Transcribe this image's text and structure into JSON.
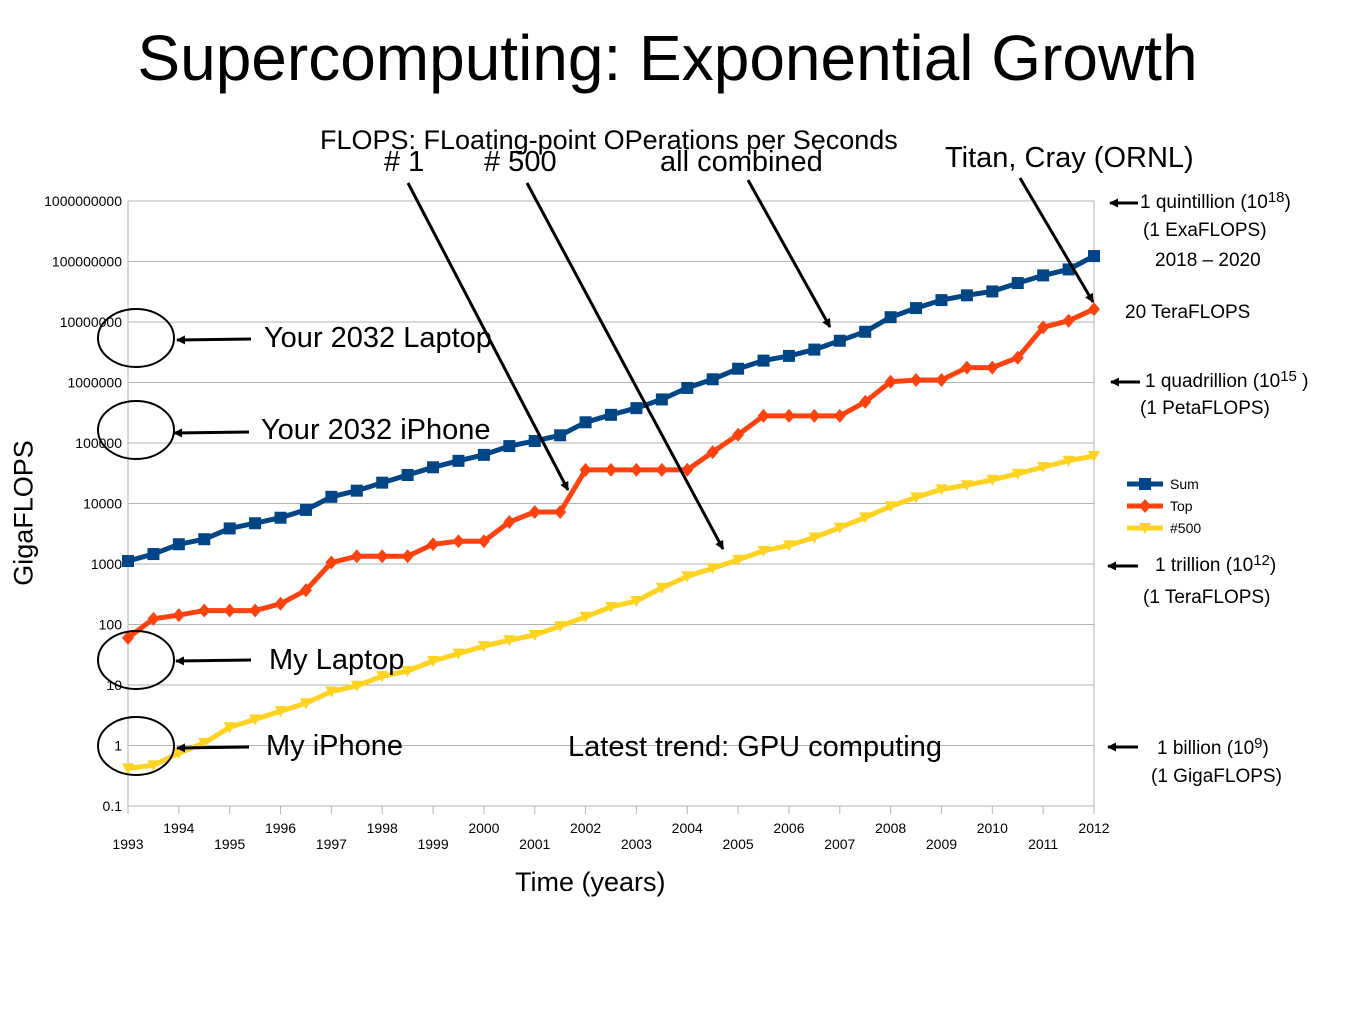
{
  "title": "Supercomputing: Exponential Growth",
  "subtitle": "FLOPS: FLoating-point OPerations per Seconds",
  "annotations": {
    "num1": "# 1",
    "num500": "# 500",
    "combined": "all combined",
    "titan": "Titan, Cray (ORNL)",
    "your_laptop": "Your 2032 Laptop",
    "your_iphone": "Your 2032 iPhone",
    "my_laptop": "My Laptop",
    "my_iphone": "My iPhone",
    "gpu_trend": "Latest trend: GPU computing"
  },
  "right_labels": {
    "quintillion": "1 quintillion (10",
    "quintillion_exp": "18",
    "exa": "(1 ExaFLOPS)",
    "exa_years": "2018 – 2020",
    "titan_value": "20 TeraFLOPS",
    "quadrillion": "1 quadrillion (10",
    "quadrillion_exp": "15",
    "peta": "(1 PetaFLOPS)",
    "trillion": "1 trillion (10",
    "trillion_exp": "12",
    "tera": "(1 TeraFLOPS)",
    "billion": "1 billion (10",
    "billion_exp": "9",
    "giga": "(1 GigaFLOPS)"
  },
  "chart_data": {
    "type": "line",
    "title": "",
    "xlabel": "Time (years)",
    "ylabel": "GigaFLOPS",
    "y_scale": "log",
    "ylim": [
      0.1,
      1000000000
    ],
    "y_ticks": [
      "0.1",
      "1",
      "10",
      "100",
      "1000",
      "10000",
      "100000",
      "1000000",
      "10000000",
      "100000000",
      "1000000000"
    ],
    "x_ticks_low": [
      "1993",
      "1995",
      "1997",
      "1999",
      "2001",
      "2003",
      "2005",
      "2007",
      "2009",
      "2011"
    ],
    "x_ticks_high": [
      "1994",
      "1996",
      "1998",
      "2000",
      "2002",
      "2004",
      "2006",
      "2008",
      "2010",
      "2012"
    ],
    "xlim": [
      1993,
      2012
    ],
    "grid": true,
    "legend_position": "right",
    "colors": {
      "sum": "#004586",
      "top": "#ff420e",
      "n500": "#ffd320"
    },
    "x": [
      1993.0,
      1993.5,
      1994.0,
      1994.5,
      1995.0,
      1995.5,
      1996.0,
      1996.5,
      1997.0,
      1997.5,
      1998.0,
      1998.5,
      1999.0,
      1999.5,
      2000.0,
      2000.5,
      2001.0,
      2001.5,
      2002.0,
      2002.5,
      2003.0,
      2003.5,
      2004.0,
      2004.5,
      2005.0,
      2005.5,
      2006.0,
      2006.5,
      2007.0,
      2007.5,
      2008.0,
      2008.5,
      2009.0,
      2009.5,
      2010.0,
      2010.5,
      2011.0,
      2011.5,
      2012.0
    ],
    "series": [
      {
        "name": "Sum",
        "key": "sum",
        "marker": "square",
        "values": [
          1120,
          1460,
          2120,
          2570,
          3870,
          4720,
          5820,
          7830,
          12900,
          16300,
          22100,
          29600,
          39700,
          50700,
          63700,
          88900,
          108000,
          134000,
          220000,
          292000,
          377000,
          525000,
          813000,
          1130000,
          1690000,
          2300000,
          2750000,
          3500000,
          4900000,
          6900000,
          12000000,
          17000000,
          23000000,
          27600000,
          32000000,
          44000000,
          58900000,
          74000000,
          123000000
        ]
      },
      {
        "name": "Top",
        "key": "top",
        "marker": "diamond",
        "values": [
          60,
          124,
          143,
          170,
          170,
          170,
          220,
          368,
          1060,
          1340,
          1340,
          1340,
          2120,
          2380,
          2380,
          4940,
          7230,
          7230,
          35900,
          35900,
          35900,
          35900,
          35900,
          70700,
          137000,
          281000,
          281000,
          281000,
          281000,
          478000,
          1030000,
          1100000,
          1100000,
          1760000,
          1760000,
          2570000,
          8160000,
          10500000,
          16300000
        ]
      },
      {
        "name": "#500",
        "key": "n500",
        "marker": "triangle-down",
        "values": [
          0.42,
          0.47,
          0.75,
          1.1,
          2.0,
          2.7,
          3.7,
          5.0,
          7.8,
          9.7,
          14,
          17,
          25,
          33,
          44,
          55,
          67,
          94,
          134,
          196,
          245,
          403,
          624,
          851,
          1170,
          1650,
          2030,
          2740,
          4000,
          5900,
          9000,
          12640,
          17100,
          20050,
          24670,
          31100,
          40100,
          51000,
          61000
        ]
      }
    ]
  }
}
